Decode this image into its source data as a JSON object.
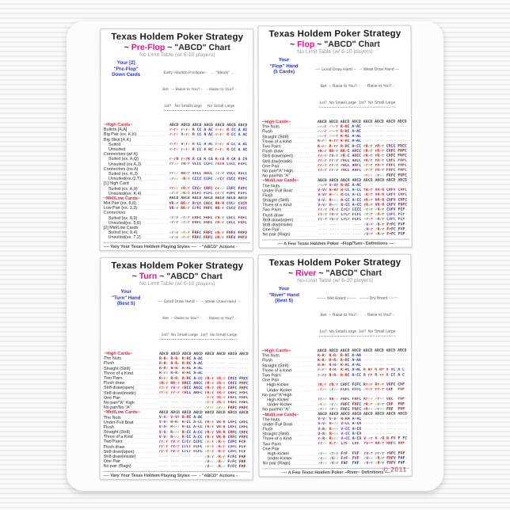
{
  "colors": {
    "stage_accent": "#ee1188",
    "raise": "#cc2222",
    "call_allin": "#2233bb",
    "value_bet": "#8822aa",
    "check": "#1a8a1a",
    "fold": "#333333",
    "section_header": "#cc2233",
    "hand_label": "#2233cc",
    "copyright": "#c76b85"
  },
  "panels": [
    {
      "title": "Texas Holdem Poker Strategy",
      "stage_pre": "~ ",
      "stage": "Pre-Flop",
      "stage_post": " ~ \"ABCD\" Chart",
      "subtitle": "No Limit Table (w/ 6-10 players)",
      "hand_label_lines": [
        "Your [2]",
        "\"Pre-Flop\"",
        "Down Cards"
      ],
      "col_headers": [
        "Early >Button Positions--   .... \"Blinds\" ....",
        "Bet   -- Raise to You? -    - Raise to You? -",
        "1st?   No Small Large     No Small Large"
      ],
      "sections": [
        {
          "name": "~High Cards~",
          "abcd": "ABCD ABCD ABCD ABCD ABCD ABCD ABCD",
          "rows": [
            {
              "label": "Bullets [A,A]",
              "values": "r=r✓ r=r✓ R-CC A-AC r=r✓ R-CC A-AC"
            },
            {
              "label": "Big Pair (ex. K,K)",
              "values": "r=r✓ V=r✓ R-CC A-AC r=r✓ R-CC A-AC"
            },
            {
              "label": "Big Slick [A,K]",
              "values": ""
            },
            {
              "label": "Suited",
              "indent": true,
              "values": "r=r✓ V=r✓ R-CC A-AC r=r✓ R-CC A-AC"
            },
            {
              "label": "Unsuited",
              "indent": true,
              "values": "r=r✓ r=r✓ R-CC R-RC r=r✓ R-CC A-AC"
            },
            {
              "label": "Connectors (w/ A)",
              "values": ""
            },
            {
              "label": "Suited (ex. A,Q)",
              "indent": true,
              "values": "r=rR r=rR R-CA R-CA R=rA R-CR A-CR"
            },
            {
              "label": "Unsuited (ex A,J)",
              "indent": true,
              "values": "rr✓✓ rR✓r VCCC CCFC rVrR CVCC FVFC"
            },
            {
              "label": "Connectors (no A)",
              "values": ""
            },
            {
              "label": "Suited (ex. K,J)",
              "indent": true,
              "values": "rr✓✓ RR✓r VVCC RRCC ✓r✓r VVCC RVCC"
            },
            {
              "label": "Unsuited(ex.Q,T)",
              "indent": true,
              "values": "✓r✓✓ ✓R✓r CCCC CCFC ✓rCr CVCC FVFC"
            },
            {
              "label": "[1] High Card",
              "values": ""
            },
            {
              "label": "Suited (ex. A,9)",
              "indent": true,
              "values": "rr✓✓ rR✓r CVCr CRFC rr✓✓ CVFC FVFC"
            },
            {
              "label": "Unsuited(ex. K,4)",
              "indent": true,
              "values": "✓r✓r ✓R✓r FCFr FCFC rr✓r FVFC FVFC"
            }
          ]
        },
        {
          "name": "~Mid/Low Cards~",
          "abcd": "ABCD ABCD ABCD ABCD ABCD ABCD ABCD",
          "rows": [
            {
              "label": "Mid Pair (ex. 8,8)",
              "values": "VR✓r RR✓r RrCC CRCC RR✓R CVCr CVCR"
            },
            {
              "label": "Low Pair (ex. 3,3)",
              "values": "VR✓r RR✓r CrFC FRFC RR✓r CVCC CVCC"
            },
            {
              "label": "Connectors",
              "values": ""
            },
            {
              "label": "Suited (ex. 8,9)",
              "indent": true,
              "values": "✓r✓r ✓r✓r CRFC FRFC rR✓r CRCC FRFC"
            },
            {
              "label": "Unsuited(ex. 5,6)",
              "indent": true,
              "values": "✓r✓r ✓r✓r FRFC FRFC rR✓r CRCC FRFC"
            },
            {
              "label": "[2] Mid/Low Cards",
              "values": ""
            },
            {
              "label": "Suited (ex. 9,4)",
              "indent": true,
              "values": "✓r✓r ✓r✓r FRFC FRFC rR✓r FRFV FRFV"
            },
            {
              "label": "Unsuited(ex. 7,2)",
              "indent": true,
              "values": "✓r✓r ✓r✓r FRFC FRFC rR✓r FRFV FRFV"
            }
          ]
        }
      ],
      "footer": {
        "styles_title": "---- Vary Your Texas Holdem Playing Styles ----",
        "styles": [
          "1. (A)ggressive - Big stacked &/or lucky streak.",
          "2. (B)luff - Occasionally - Once in 10-15 hands.",
          "      Ex. Steal-blinds raise w/weak cards.",
          "3. (C)onservative - Play premium hands only.",
          "4. (D)efensive - Hide hand weakness/strength."
        ],
        "actions_title": "- \"ABCD\" Actions -",
        "actions": [
          "Check: ✓  Fold: F",
          "Call (a raise): C",
          "Raise: r (Sm) R (Lg)",
          "Value Bet: V (~1/2 pot)",
          "All-in Bet: A (All chips)"
        ]
      }
    },
    {
      "title": "Texas Holdem Poker Strategy",
      "stage_pre": "~ ",
      "stage": "Flop",
      "stage_post": " ~ \"ABCD\" Chart",
      "subtitle": "No Limit Table (w/ 6-10 players)",
      "hand_label_lines": [
        "Your",
        "\"Flop\" Hand",
        "(5 Cards)"
      ],
      "col_headers": [
        "---- Good Draw Hand --   -- Weak Draw Hand ---",
        "Bet  -- Raise to You? -     - Raise to You? -",
        "1st?  No Small Large  1st?  No Small Large"
      ],
      "sections": [
        {
          "name": "~High Cards~",
          "abcd": "ABCD ABCD ABCD ABCD ABCD ABCD ABCD ABCD",
          "rows": [
            {
              "label": "The Nuts",
              "values": "✓=✓r ✓=✓r R=RC A=AC ---- ---- ---- ----"
            },
            {
              "label": "Flush",
              "values": "✓=✓r ✓=✓r R=RC A=AC ---- ---- ---- ----"
            },
            {
              "label": "Straight (Str8)",
              "values": "✓=✓r ✓=✓r R=RC A=AC ---- ---- ---- ----"
            },
            {
              "label": "Three of a Kind",
              "values": "R=r✓ R=rr R=RC A=AC ---- ---- ---- ----"
            },
            {
              "label": "Two Pairs",
              "values": "R=r✓ R=rr R=RC A=CC rR✓r rR✓r CRCC FRCC"
            },
            {
              "label": "Flush draw",
              "values": "rR✓r RR✓r RR✓C ARCC rR✓r rR✓r CRFC FRFC"
            },
            {
              "label": "Str8 draw(open)",
              "values": "rr✓r rV✓r rR✓C ARCC rR✓r rR✓r CRFC FRFC"
            },
            {
              "label": "Str8 drw(inside)",
              "values": "rr✓r rr✓r rRCC ARCC rR✓r rR✓r CRFC FRFC"
            },
            {
              "label": "One Pair",
              "values": "rr✓r rr✓r rRCC ARFC ✓r✓r rR✓r FRFC FRFC"
            },
            {
              "label": "No pair/\"A\" High",
              "values": "rr✓r rr✓r rRCC ARFC ✓r✓r rR✓r FRFC FRFC"
            },
            {
              "label": "No pair/No \"A\"",
              "values": "---- ---- ---- ---- ✓r✓✓ ✓r✓✓ FRFC FRFC"
            }
          ]
        },
        {
          "name": "~Mid/Low Cards~",
          "abcd": "ABCD ABCD ABCD ABCD ABCD ABCD ABCD ABCD",
          "rows": [
            {
              "label": "The Nuts",
              "values": "✓=✓r V=Vr R=RC A=AC ---- ---- ---- ----"
            },
            {
              "label": "Under-Full Boat",
              "values": "V=Vr R=Rr R=CC A=CC rR✓r VR✓R CRFV CRFC"
            },
            {
              "label": "Flush",
              "values": "V=Vr R=✓✓ R=CC A=CC ✓R✓r VR✓R CRFV CRFC"
            },
            {
              "label": "Straight (Str8)",
              "values": "V=V✓ R=✓✓ R=CC A=CC rR✓r VR✓R CRFV CRFC"
            },
            {
              "label": "Three of a Kind",
              "values": "V=V✓ R=✓✓ R=CC A=CC rR✓r VR✓R CRFV FRFC"
            },
            {
              "label": "Two Pairs",
              "values": "rr✓r rV✓r CrCr CCCC ✓r✓r ✓R✓r CVFV FCF-"
            },
            {
              "label": "Flush draw",
              "values": "rr✓r rV✓r CrCr FCFC ✓r✓r ✓R✓r CVFC FCF-"
            },
            {
              "label": "Str8 draw(open)",
              "values": "rr✓r rV✓r CrCr FCFC ✓r✓r ✓R✓r CVFC FCF-"
            },
            {
              "label": "Str8 drw(inside)",
              "values": "---- ---- ---- ---- ✓V✓r ✓R✓r FrFC FVF-"
            },
            {
              "label": "One Pair",
              "values": "---- ---- ---- ---- ✓V✓r ✓R✓r FrFC FVF-"
            },
            {
              "label": "No pair (Rags)",
              "values": "---- ---- ---- ---- ✓V✓r ✓R✓r FrFC FVF-"
            }
          ]
        }
      ],
      "footer": {
        "defs_title": "---- A Few Texas Holdem Poker ~Flop/Turn~ Definitions ----",
        "defs": [
          "1. The Nuts: Royal Flush, 4 of a kind (Quads), Str8 Flush, most",
          "    Full Houses (Boats) & some \"high-card\" Flushes / Str8s / Sets.",
          "2. High cards: A, K, Q, J, 10(T).  Mid cards: 6-9.  Low cards: 2-5.",
          "3. Good Draw Hand: -Pot Hand- or drawing w/ 7 or more outs.",
          "4. Weak Draw Hand: ?? Out-Flopped ?? &/or < 7 outs."
        ]
      }
    },
    {
      "title": "Texas Holdem Poker Strategy",
      "stage_pre": "~ ",
      "stage": "Turn",
      "stage_post": " ~ \"ABCD\" Chart",
      "subtitle": "No Limit Table (w/ 6-10 players)",
      "hand_label_lines": [
        "Your",
        "\"Turn\" Hand",
        "(Best 5)"
      ],
      "col_headers": [
        "---- Good Draw Hand --   -- Weak Draw Hand ---",
        "Bet  -- Raise to You? -     - Raise to You? -",
        "1st?  No Small Large  1st?  No Small Large"
      ],
      "sections": [
        {
          "name": "~High Cards~",
          "abcd": "ABCD ABCD ABCD ABCD ABCD ABCD ABCD ABCD",
          "rows": [
            {
              "label": "The Nuts",
              "values": "R=R✓ R=R✓ R=RC A=AC ---- ---- ---- ----"
            },
            {
              "label": "Flush",
              "values": "R=R✓ R=R✓ R=RC A=AC ---- ---- ---- ----"
            },
            {
              "label": "Straight (Str8)",
              "values": "R=R✓ R=R✓ R=RC A=AC ---- ---- ---- ----"
            },
            {
              "label": "Three of a Kind",
              "values": "R=r✓ R=R✓ R=RC A=AC ---- ---- ---- ----"
            },
            {
              "label": "Two Pairs",
              "values": "R=r✓ R=R✓ R=RC A=CC rR✓r rR✓r CRCC FRCC"
            },
            {
              "label": "Flush draw",
              "values": "rR✓r RR✓r RRCC ARCC rR✓r rR✓r CRCC FRFC"
            },
            {
              "label": "Str8 draw(open)",
              "values": "rr✓r rV✓r rRCC ARCC rR✓r rR✓r CRFC FRFC"
            },
            {
              "label": "Str8 draw(inside)",
              "values": "rr✓r rr✓r rRCC ARFC rR✓r rR✓r CRFC FRFC"
            },
            {
              "label": "One Pair",
              "values": "---- ---- ---- ---- ✓r✓r rR✓r FRFC FRFC"
            },
            {
              "label": "No pair/\"A\" High",
              "values": "---- ---- ---- ---- ✓r✓r rR✓r FRFC FRFC"
            },
            {
              "label": "No pair/No \"A\"",
              "values": "---- ---- ---- ---- ✓r✓✓ ✓r✓✓ FRFC FRFC"
            }
          ]
        },
        {
          "name": "~Mid/Low Cards~",
          "abcd": "ABCD ABCD ABCD ABCD ABCD ABCD ABCD ABCD",
          "rows": [
            {
              "label": "The Nuts",
              "values": "V=V✓ V=Vr R=RC A=AC ---- ---- ---- ----"
            },
            {
              "label": "Under-Full Boat",
              "values": "V=V✓ R=R✓ R=CC A=CC rR✓r VR✓R CRFC CRFC"
            },
            {
              "label": "Flush",
              "values": "V=V✓ R=✓✓ R=CC A=CC rR✓r VR✓R CRFC CRFC"
            },
            {
              "label": "Straight (Str8)",
              "values": "V=V✓ R=✓✓ R=CC A=CC rR✓r VR✓R CRFC CRFC"
            },
            {
              "label": "Three of a Kind",
              "values": "V=V✓ R=✓✓ R=CC A=CC rR✓r VR✓R CRFC FRFC"
            },
            {
              "label": "Two Pairs",
              "values": "rr✓r rV✓r CrCr CCFC ✓r✓r ✓R✓r CVFC FCF-"
            },
            {
              "label": "Flush draw",
              "values": "rr✓r rV✓r CrCr FCFC ✓r✓r ✓R✓r CVFC FCF-"
            },
            {
              "label": "Str8 draw(open)",
              "values": "rr✓r rV✓r CrCr FCFC ✓r✓r ✓R✓r CVFC FCF-"
            },
            {
              "label": "Str8 draw(inside)",
              "values": "---- ---- ---- ---- ✓V✓r ✓R✓r FrFC FRF-"
            },
            {
              "label": "One Pair",
              "values": "---- ---- ---- ---- ✓V✓✓ ✓R✓✓ FrFC FRF-"
            },
            {
              "label": "No pair (Rags)",
              "values": "---- ---- ---- ---- ✓V✓✓ ✓R✓✓ FrFC FRF-"
            }
          ]
        }
      ],
      "footer": {
        "styles_title": "---- Vary Your Texas Holdem Playing Styles ----",
        "styles": [
          "1. (A)ggressive - Big stacked &/or lucky streak.",
          "2. (B)luff - Occasionally - Once in 10-15 hands.",
          "      Ex. Steal-blinds raise w/weak cards.",
          "3. (C)onservative - Play premium hands only.",
          "4. (D)efensive - Hide hand weakness/strength."
        ],
        "actions_title": "- \"ABCD\" Actions -",
        "actions": [
          "Check: ✓  Fold: F",
          "Call (a raise): C",
          "Raise: r (Sm) R (Lg)",
          "Value Bet: V (~1/2 pot)",
          "All-in Bet: A (All chips)"
        ]
      }
    },
    {
      "title": "Texas Holdem Poker Strategy",
      "stage_pre": "~ ",
      "stage": "River",
      "stage_post": " ~ \"ABCD\" Chart",
      "subtitle": "No-Limit Table (w/ 6-10 players)",
      "hand_label_lines": [
        "Your",
        "\"River\" Hand",
        "(Best 5)"
      ],
      "col_headers": [
        "~~~~ Wet Board ~~~~   ~~~~ Dry Board ~~~~",
        "Bet  -- Raise to You? -     - Raise to You? -",
        "1st?  No Small Large  1st?  No Small Large"
      ],
      "sections": [
        {
          "name": "~High Cards~",
          "abcd": "ABCD ABCD ABCD ABCD ABCD ABCD ABCD ABCD",
          "rows": [
            {
              "label": "The Nuts",
              "values": "R=R✓ R=R✓ R=RC A=AA ---- ---- ---- ----"
            },
            {
              "label": "Flush",
              "values": "R=R✓ R=R✓ R=RC A=AA ---- ---- ---- ----"
            },
            {
              "label": "Straight (Str8)",
              "values": "R=R✓ R=R✓ R=RC A=AC ---- ---- ---- ----"
            },
            {
              "label": "Three of a Kind",
              "values": "r=r✓ R=R✓ R=RC A=AC R-Rr R-Rr V-VC A-C-"
            },
            {
              "label": "Two Pairs",
              "values": "r=rr R=R✓ R=RC A=CC R-rr R-rr V-CC A-C-"
            },
            {
              "label": "One Pair",
              "values": ""
            },
            {
              "label": "High-Kicker",
              "indent": true,
              "values": "rR✓r rR✓r CRFC FCFC Rr✓r Rr✓r VRFC CRF-"
            },
            {
              "label": "Under-Kicker",
              "indent": true,
              "values": "✓r✓✓ ✓r✓✓ FCFC FFFC ✓r✓r rr✓r CRF- FRF-"
            },
            {
              "label": "No pair/\"A\"High",
              "values": ""
            },
            {
              "label": "High-Kicker",
              "indent": true,
              "values": "rr✓✓ VR✓✓ FRFC FRFC Rr✓✓ ✓r✓✓ VRC- FRF-"
            },
            {
              "label": "Under-Kicker",
              "indent": true,
              "values": "✓r✓✓ ✓r✓✓ FRFC FRFC rR✓r ✓r✓r CRF- FRF-"
            },
            {
              "label": "No pair/No \"A\"",
              "values": "✓r✓✓ ✓r✓✓ FRFC FRFC rR✓✓ ✓r✓✓ FRF- FRF-"
            }
          ]
        },
        {
          "name": "~Mid/Low Cards~",
          "abcd": "ABCD ABCD ABCD ABCD ABCD ABCD ABCD ABCD",
          "rows": [
            {
              "label": "The Nuts",
              "values": "V=V✓ V=V✓ R=RA A=AC ---- ---- ---- ----"
            },
            {
              "label": "Under-Full Boat",
              "values": "V=V✓ R=✓✓ V=CC A=CR ---- ---- ---- ----"
            },
            {
              "label": "Flush",
              "values": "V=R✓ R=✓✓ V=CC A=CR ---- ---- ---- ----"
            },
            {
              "label": "Straight (Str8)",
              "values": "V=R✓ R=✓✓ V=CC A=CR ---- ---- ---- ----"
            },
            {
              "label": "Three of a Kind",
              "values": "r=R✓ R=✓✓ V=CC A=CR V-✓r V-✓R R-FV F-FC"
            },
            {
              "label": "Two Pairs",
              "values": "rr✓✓ R✓r✓ CrF- CVF- rV✓r RR✓r RRFC RRF-"
            },
            {
              "label": "One Pair",
              "values": ""
            },
            {
              "label": "High-Kicker",
              "indent": true,
              "values": "✓r✓✓ ✓r✓r FrF- FVF- rV✓r rr✓r rRFC FRF-"
            },
            {
              "label": "Under-Kicker",
              "indent": true,
              "values": "✓r✓✓ ✓V✓✓ FrF- FVF- ✓V✓✓ ✓R✓r FRFV FAF-"
            },
            {
              "label": "No pair (Rags)",
              "values": "✓r✓✓ ✓V✓r FAF- FAF- ✓V✓r ✓R✓r FRFV FAF-"
            }
          ]
        }
      ],
      "footer": {
        "defs_title": "---- A Few Texas Holdem Poker ~River~ Definitions ----",
        "defs": [
          "1. The Nuts: Royal Flush, 4-of-a-kind (Quads), Str8 Flush, most",
          "    Full Houses (Boats) & some \"high-card\" Flushes / Str8s / Sets.",
          "2. High cards: A, K, Q, J, 10(T).  Mid cards: 6-9.  Low cards: 2-5.",
          "3. Wet Board: \"(Pair(s), Flush &/or Str8)-Heavy\" Community Cards.",
          "4. Dry Board: \"Ragged\" Community Cards."
        ]
      },
      "copyright": "© 2011"
    }
  ]
}
